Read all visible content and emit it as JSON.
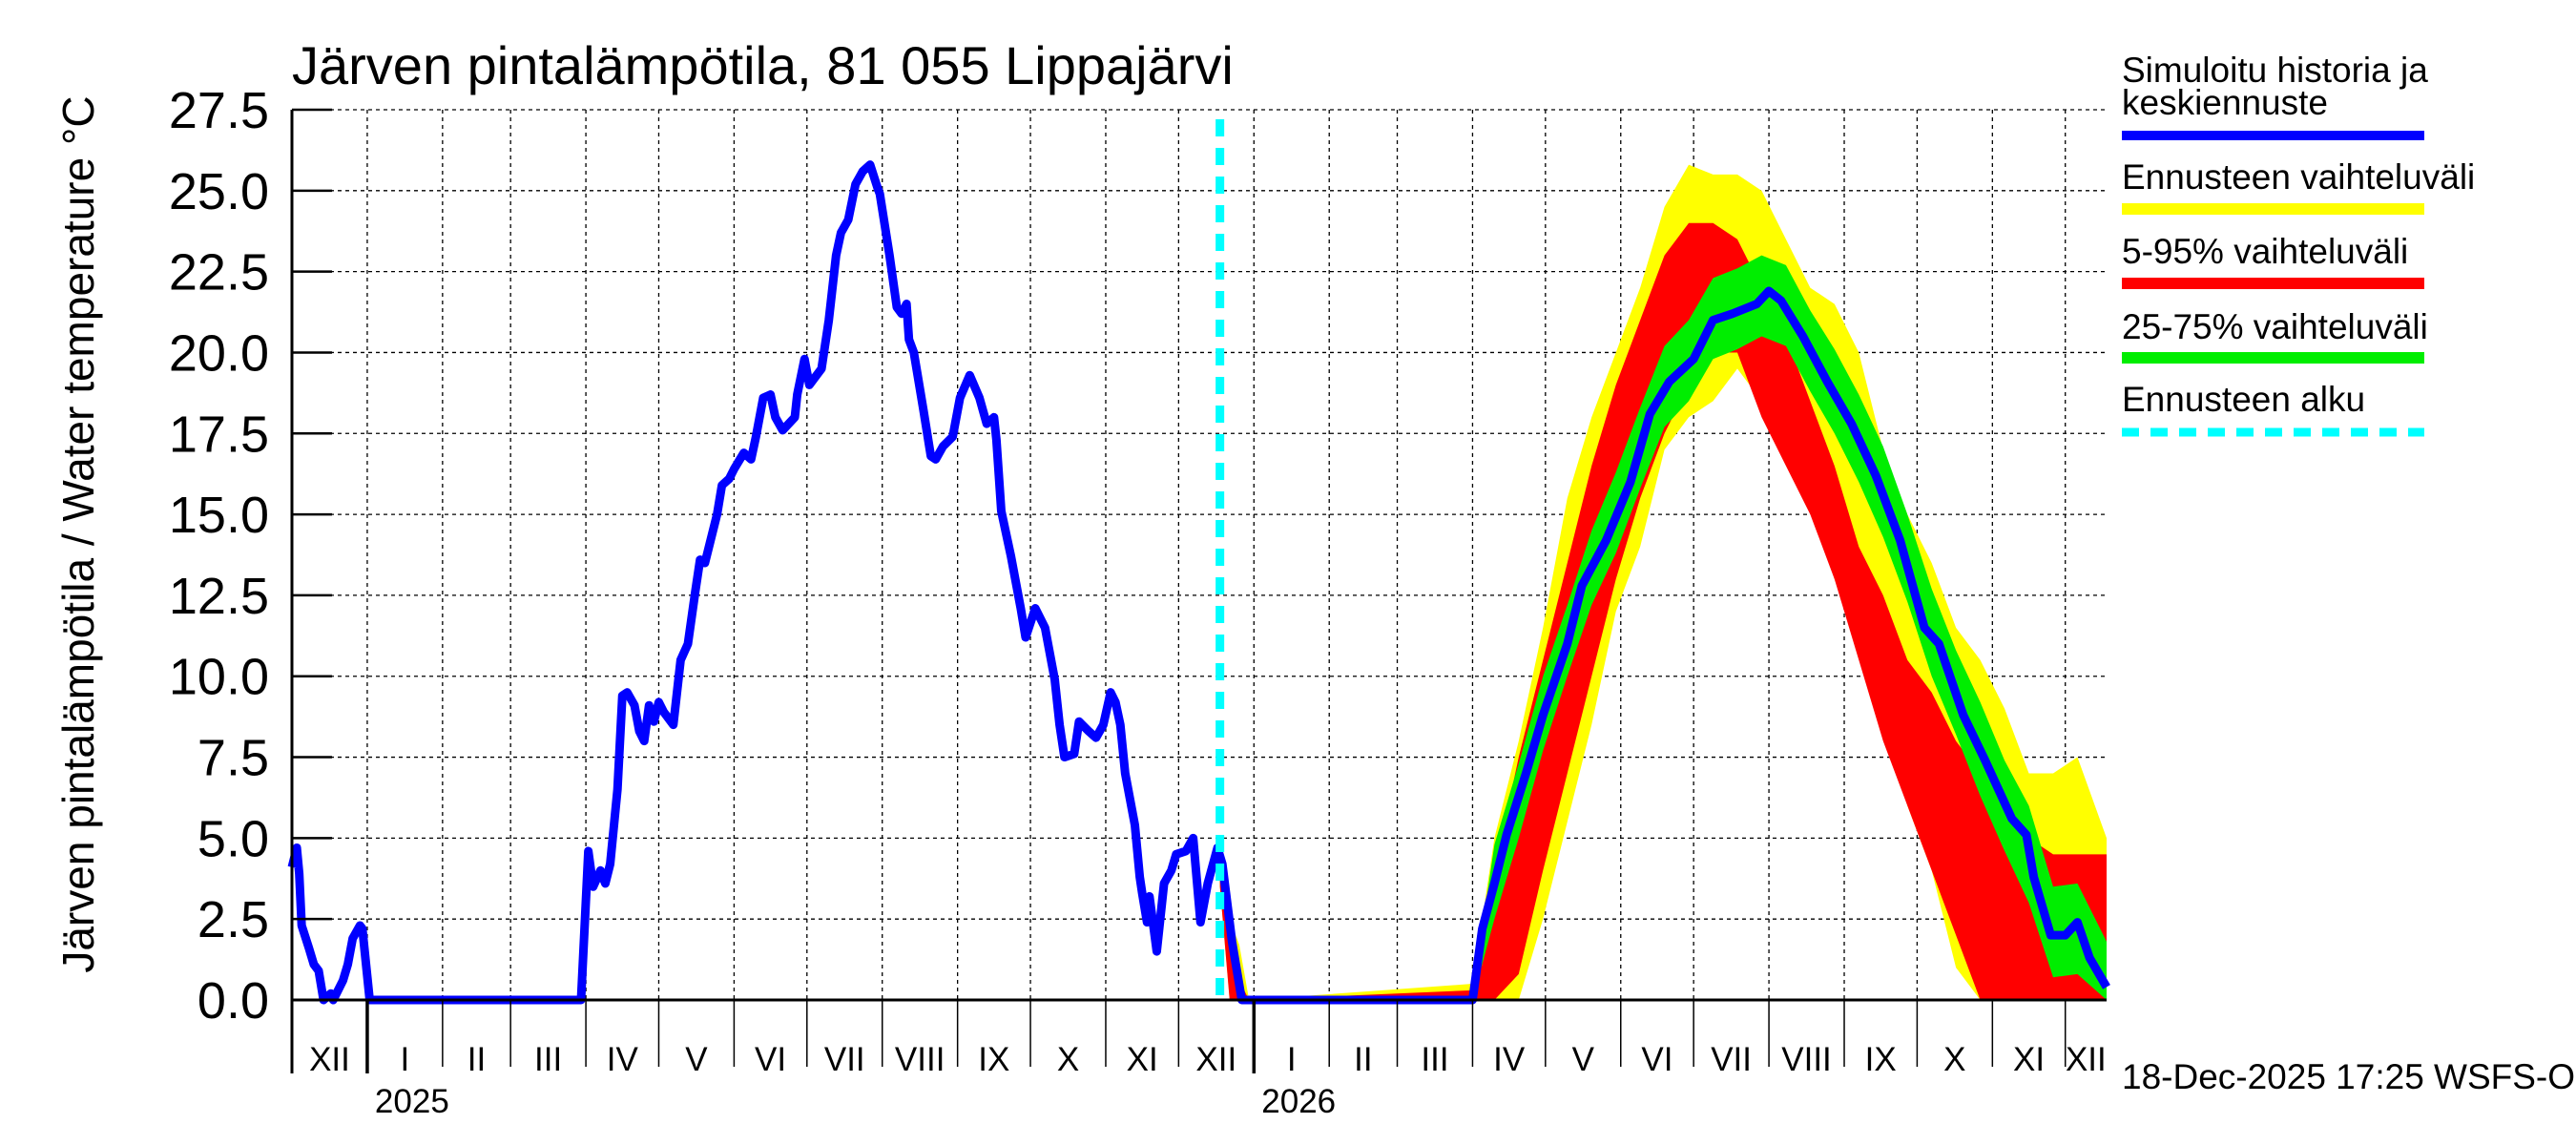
{
  "chart_data": {
    "type": "area",
    "title": "Järven pintalämpötila, 81 055 Lippajärvi",
    "ylabel": "Järven pintalämpötila / Water temperature °C",
    "xlabel": "",
    "x_unit": "days since 2024-12-01",
    "xlim": [
      0,
      747
    ],
    "ylim": [
      0,
      27.5
    ],
    "y_ticks": [
      0,
      2.5,
      5,
      7.5,
      10,
      12.5,
      15,
      17.5,
      20,
      22.5,
      25,
      27.5
    ],
    "y_tick_labels": [
      "0.0",
      "2.5",
      "5.0",
      "7.5",
      "10.0",
      "12.5",
      "15.0",
      "17.5",
      "20.0",
      "22.5",
      "25.0",
      "27.5"
    ],
    "grid": true,
    "months": [
      {
        "label": "XII",
        "start_day": 0
      },
      {
        "label": "I",
        "start_day": 31
      },
      {
        "label": "II",
        "start_day": 62
      },
      {
        "label": "III",
        "start_day": 90
      },
      {
        "label": "IV",
        "start_day": 121
      },
      {
        "label": "V",
        "start_day": 151
      },
      {
        "label": "VI",
        "start_day": 182
      },
      {
        "label": "VII",
        "start_day": 212
      },
      {
        "label": "VIII",
        "start_day": 243
      },
      {
        "label": "IX",
        "start_day": 274
      },
      {
        "label": "X",
        "start_day": 304
      },
      {
        "label": "XI",
        "start_day": 335
      },
      {
        "label": "XII",
        "start_day": 365
      },
      {
        "label": "I",
        "start_day": 396
      },
      {
        "label": "II",
        "start_day": 427
      },
      {
        "label": "III",
        "start_day": 455
      },
      {
        "label": "IV",
        "start_day": 486
      },
      {
        "label": "V",
        "start_day": 516
      },
      {
        "label": "VI",
        "start_day": 547
      },
      {
        "label": "VII",
        "start_day": 577
      },
      {
        "label": "VIII",
        "start_day": 608
      },
      {
        "label": "IX",
        "start_day": 639
      },
      {
        "label": "X",
        "start_day": 669
      },
      {
        "label": "XI",
        "start_day": 700
      },
      {
        "label": "XII",
        "start_day": 730
      }
    ],
    "years": [
      {
        "label": "2025",
        "start_day": 31
      },
      {
        "label": "2026",
        "start_day": 396
      }
    ],
    "forecast_start_day": 382,
    "series": [
      {
        "name": "Simuloitu historia ja keskiennuste",
        "color": "#0000ff",
        "points": [
          [
            0,
            4.1
          ],
          [
            2,
            4.7
          ],
          [
            3,
            3.9
          ],
          [
            4,
            2.3
          ],
          [
            7,
            1.6
          ],
          [
            9,
            1.1
          ],
          [
            11,
            0.9
          ],
          [
            13,
            0
          ],
          [
            16,
            0.2
          ],
          [
            17,
            0
          ],
          [
            19,
            0.3
          ],
          [
            21,
            0.6
          ],
          [
            23,
            1.1
          ],
          [
            25,
            1.9
          ],
          [
            28,
            2.3
          ],
          [
            29,
            2.2
          ],
          [
            32,
            0
          ],
          [
            119,
            0
          ],
          [
            122,
            4.6
          ],
          [
            124,
            3.5
          ],
          [
            127,
            4.0
          ],
          [
            129,
            3.6
          ],
          [
            131,
            4.2
          ],
          [
            134,
            6.5
          ],
          [
            136,
            9.4
          ],
          [
            138,
            9.5
          ],
          [
            141,
            9.1
          ],
          [
            143,
            8.3
          ],
          [
            145,
            8.0
          ],
          [
            147,
            9.1
          ],
          [
            149,
            8.6
          ],
          [
            151,
            9.2
          ],
          [
            153,
            8.9
          ],
          [
            157,
            8.5
          ],
          [
            160,
            10.5
          ],
          [
            163,
            11.0
          ],
          [
            166,
            12.6
          ],
          [
            168,
            13.6
          ],
          [
            170,
            13.5
          ],
          [
            172,
            14.1
          ],
          [
            175,
            15.0
          ],
          [
            177,
            15.9
          ],
          [
            180,
            16.1
          ],
          [
            182,
            16.4
          ],
          [
            186,
            16.9
          ],
          [
            189,
            16.7
          ],
          [
            191,
            17.4
          ],
          [
            194,
            18.6
          ],
          [
            197,
            18.7
          ],
          [
            199,
            18.0
          ],
          [
            202,
            17.6
          ],
          [
            207,
            18.0
          ],
          [
            208,
            18.7
          ],
          [
            211,
            19.8
          ],
          [
            213,
            19.0
          ],
          [
            216,
            19.3
          ],
          [
            218,
            19.5
          ],
          [
            221,
            21.0
          ],
          [
            224,
            23.0
          ],
          [
            226,
            23.7
          ],
          [
            229,
            24.1
          ],
          [
            232,
            25.2
          ],
          [
            235,
            25.6
          ],
          [
            238,
            25.8
          ],
          [
            241,
            25.1
          ],
          [
            242,
            24.9
          ],
          [
            246,
            23.0
          ],
          [
            249,
            21.4
          ],
          [
            251,
            21.2
          ],
          [
            253,
            21.5
          ],
          [
            254,
            20.4
          ],
          [
            256,
            20.0
          ],
          [
            260,
            18.2
          ],
          [
            263,
            16.8
          ],
          [
            265,
            16.7
          ],
          [
            268,
            17.1
          ],
          [
            272,
            17.4
          ],
          [
            275,
            18.6
          ],
          [
            279,
            19.3
          ],
          [
            283,
            18.6
          ],
          [
            286,
            17.8
          ],
          [
            289,
            18.0
          ],
          [
            290,
            17.3
          ],
          [
            292,
            15.1
          ],
          [
            296,
            13.7
          ],
          [
            300,
            12.1
          ],
          [
            302,
            11.2
          ],
          [
            306,
            12.1
          ],
          [
            310,
            11.5
          ],
          [
            314,
            9.9
          ],
          [
            316,
            8.5
          ],
          [
            318,
            7.5
          ],
          [
            322,
            7.6
          ],
          [
            324,
            8.6
          ],
          [
            328,
            8.3
          ],
          [
            331,
            8.1
          ],
          [
            334,
            8.5
          ],
          [
            337,
            9.5
          ],
          [
            339,
            9.2
          ],
          [
            341,
            8.5
          ],
          [
            343,
            7.0
          ],
          [
            347,
            5.4
          ],
          [
            349,
            3.8
          ],
          [
            350,
            3.3
          ],
          [
            352,
            2.4
          ],
          [
            353,
            3.2
          ],
          [
            356,
            1.5
          ],
          [
            359,
            3.6
          ],
          [
            362,
            4.0
          ],
          [
            364,
            4.5
          ],
          [
            368,
            4.6
          ],
          [
            371,
            5.0
          ],
          [
            374,
            2.4
          ],
          [
            377,
            3.6
          ],
          [
            381,
            4.7
          ],
          [
            383,
            4.2
          ],
          [
            387,
            1.8
          ],
          [
            391,
            0
          ],
          [
            486,
            0
          ],
          [
            490,
            2.2
          ],
          [
            495,
            3.6
          ],
          [
            500,
            5.1
          ],
          [
            508,
            7.0
          ],
          [
            515,
            8.8
          ],
          [
            525,
            11.0
          ],
          [
            531,
            12.8
          ],
          [
            541,
            14.2
          ],
          [
            551,
            16.0
          ],
          [
            559,
            18.1
          ],
          [
            567,
            19.1
          ],
          [
            577,
            19.8
          ],
          [
            585,
            21.0
          ],
          [
            593,
            21.2
          ],
          [
            603,
            21.5
          ],
          [
            608,
            21.9
          ],
          [
            613,
            21.6
          ],
          [
            622,
            20.5
          ],
          [
            632,
            19.1
          ],
          [
            642,
            17.8
          ],
          [
            652,
            16.2
          ],
          [
            662,
            14.2
          ],
          [
            672,
            11.5
          ],
          [
            678,
            11.0
          ],
          [
            688,
            8.8
          ],
          [
            697,
            7.4
          ],
          [
            708,
            5.6
          ],
          [
            714,
            5.1
          ],
          [
            717,
            3.8
          ],
          [
            724,
            2.0
          ],
          [
            730,
            2.0
          ],
          [
            735,
            2.4
          ],
          [
            740,
            1.3
          ],
          [
            747,
            0.4
          ]
        ]
      }
    ],
    "bands": [
      {
        "name": "Ennusteen vaihteluväli",
        "color": "#ffff00",
        "days": [
          382,
          386,
          390,
          394,
          486,
          495,
          505,
          515,
          525,
          535,
          545,
          555,
          565,
          575,
          585,
          595,
          605,
          615,
          625,
          635,
          645,
          655,
          665,
          675,
          685,
          695,
          705,
          715,
          725,
          735,
          747
        ],
        "lo": [
          3.5,
          0,
          0,
          0,
          0,
          0,
          0,
          2.5,
          5.5,
          8.5,
          12,
          14,
          17,
          18,
          18.5,
          19.5,
          18.5,
          17,
          15.5,
          13,
          11,
          9,
          6,
          4,
          1,
          0,
          0,
          0,
          0,
          0,
          0
        ],
        "hi": [
          4.5,
          2.5,
          1.7,
          0,
          0.5,
          5,
          8,
          11.5,
          15.5,
          18,
          20,
          22,
          24.5,
          25.8,
          25.5,
          25.5,
          25,
          23.5,
          22,
          21.5,
          20,
          17,
          15,
          13.5,
          11.5,
          10.5,
          9,
          7,
          7,
          7.5,
          5
        ]
      },
      {
        "name": "5-95% vaihteluväli",
        "color": "#ff0000",
        "days": [
          382,
          386,
          390,
          394,
          486,
          495,
          505,
          515,
          525,
          535,
          545,
          555,
          565,
          575,
          585,
          595,
          605,
          615,
          625,
          635,
          645,
          655,
          665,
          675,
          685,
          695,
          705,
          715,
          725,
          735,
          747
        ],
        "lo": [
          3.5,
          0,
          0,
          0,
          0,
          0,
          0.8,
          4,
          7,
          10,
          13,
          15.5,
          17.5,
          19,
          20,
          20,
          18,
          16.5,
          15,
          13,
          10.5,
          8,
          6,
          4,
          2,
          0,
          0,
          0,
          0,
          0,
          0
        ],
        "hi": [
          4.2,
          1.8,
          0.6,
          0,
          0.3,
          4,
          7.5,
          10.5,
          13.5,
          16.5,
          19,
          21,
          23,
          24,
          24,
          23.5,
          22,
          20.5,
          18.5,
          16.5,
          14,
          12.5,
          10.5,
          9.5,
          8,
          7,
          6,
          5,
          4.5,
          4.5,
          4.5
        ]
      },
      {
        "name": "25-75% vaihteluväli",
        "color": "#00ee00",
        "days": [
          486,
          495,
          505,
          515,
          525,
          535,
          545,
          555,
          565,
          575,
          585,
          595,
          605,
          615,
          625,
          635,
          645,
          655,
          665,
          675,
          685,
          695,
          705,
          715,
          725,
          735,
          747
        ],
        "lo": [
          0,
          2.5,
          5,
          7.7,
          10,
          12.2,
          13.8,
          15.8,
          17.7,
          18.5,
          19.8,
          20.1,
          20.5,
          20.2,
          18.8,
          17.5,
          16,
          14.3,
          12.3,
          10,
          8.2,
          6.3,
          4.6,
          3,
          0.7,
          0.8,
          0
        ],
        "hi": [
          0.2,
          4.8,
          7.3,
          10,
          12.2,
          14.5,
          16.3,
          18.3,
          20.2,
          21,
          22.3,
          22.6,
          23,
          22.7,
          21.3,
          20.1,
          18.7,
          17.1,
          15,
          12.7,
          10.8,
          9.2,
          7.4,
          6,
          3.5,
          3.6,
          1.8
        ]
      }
    ],
    "legend": {
      "placement": "right",
      "entries": [
        {
          "label_line1": "Simuloitu historia ja",
          "label_line2": "keskiennuste",
          "color": "#0000ff",
          "style": "solid"
        },
        {
          "label": "Ennusteen vaihteluväli",
          "color": "#ffff00",
          "style": "solid"
        },
        {
          "label": "5-95% vaihteluväli",
          "color": "#ff0000",
          "style": "solid"
        },
        {
          "label": "25-75% vaihteluväli",
          "color": "#00ee00",
          "style": "solid"
        },
        {
          "label": "Ennusteen alku",
          "color": "#00ffff",
          "style": "dashed"
        }
      ]
    },
    "footer": "18-Dec-2025 17:25 WSFS-O"
  }
}
